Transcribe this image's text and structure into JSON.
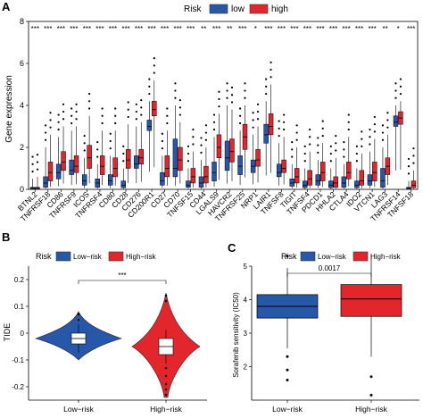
{
  "panels": {
    "A": {
      "label": "A"
    },
    "B": {
      "label": "B"
    },
    "C": {
      "label": "C"
    }
  },
  "colors": {
    "low": "#2757a8",
    "high": "#e3262b",
    "axis": "#000000",
    "grid": "#ffffff"
  },
  "chart_data": [
    {
      "type": "box",
      "panel": "A",
      "ylabel": "Gene expression",
      "ylim": [
        0,
        8
      ],
      "yticks": [
        0,
        2,
        4,
        6,
        8
      ],
      "legend": {
        "title": "Risk",
        "entries": [
          "low",
          "high"
        ],
        "position": "top"
      },
      "categories": [
        "BTNL2",
        "TNFRSF18",
        "CD86",
        "TNFRSF9",
        "ICOS",
        "TNFRSF4",
        "CD80",
        "CD28",
        "CD276",
        "CD200R1",
        "CD27",
        "CD70",
        "TNFSF15",
        "CD44",
        "LGALS9",
        "HAVCR2",
        "TNFRSF25",
        "NRP1",
        "LAIR1",
        "TNFSF8",
        "TIGIT",
        "TNFSF4",
        "PDCD1",
        "HHLA2",
        "CTLA4",
        "IDO2",
        "VTCN1",
        "LAG3",
        "TNFRSF14",
        "TNFSF18"
      ],
      "significance": [
        "***",
        "***",
        "***",
        "***",
        "***",
        "***",
        "***",
        "***",
        "***",
        "***",
        "***",
        "***",
        "***",
        "**",
        "***",
        "**",
        "***",
        "*",
        "***",
        "***",
        "***",
        "***",
        "***",
        "***",
        "***",
        "***",
        "***",
        "**",
        "*",
        "***"
      ],
      "series": [
        {
          "name": "low",
          "median": [
            0.05,
            0.3,
            0.8,
            0.9,
            0.4,
            0.3,
            0.4,
            0.2,
            1.2,
            3.0,
            0.4,
            1.0,
            0.2,
            0.3,
            0.8,
            1.5,
            1.1,
            1.1,
            2.6,
            0.8,
            0.3,
            0.2,
            0.4,
            0.2,
            0.3,
            0.2,
            0.4,
            0.4,
            3.2,
            0.05
          ],
          "q1": [
            0.02,
            0.1,
            0.5,
            0.7,
            0.2,
            0.1,
            0.2,
            0.08,
            1.0,
            2.8,
            0.2,
            0.6,
            0.1,
            0.1,
            0.4,
            0.9,
            0.7,
            0.8,
            2.2,
            0.6,
            0.15,
            0.08,
            0.2,
            0.08,
            0.1,
            0.08,
            0.2,
            0.1,
            3.0,
            0.02
          ],
          "q3": [
            0.1,
            0.6,
            1.2,
            1.4,
            0.7,
            0.5,
            0.7,
            0.4,
            1.6,
            3.3,
            0.8,
            2.4,
            0.4,
            0.6,
            1.3,
            2.3,
            1.6,
            1.4,
            3.1,
            1.2,
            0.5,
            0.4,
            0.7,
            0.4,
            0.6,
            0.4,
            0.7,
            1.0,
            3.5,
            0.1
          ],
          "max": [
            0.5,
            2.0,
            2.5,
            2.8,
            1.5,
            1.2,
            1.6,
            1.0,
            3.0,
            4.2,
            1.6,
            4.0,
            1.0,
            1.4,
            2.5,
            4.0,
            2.8,
            2.6,
            4.2,
            2.2,
            1.2,
            1.0,
            1.4,
            1.0,
            1.2,
            1.0,
            1.8,
            2.0,
            4.0,
            0.4
          ]
        },
        {
          "name": "high",
          "median": [
            0.05,
            0.8,
            1.3,
            1.1,
            1.5,
            1.1,
            1.0,
            1.4,
            1.5,
            3.8,
            1.0,
            1.4,
            0.6,
            0.6,
            2.0,
            1.8,
            2.5,
            1.4,
            3.0,
            1.0,
            0.6,
            0.5,
            0.8,
            0.3,
            0.8,
            0.4,
            0.8,
            1.1,
            3.4,
            0.2
          ],
          "q1": [
            0.02,
            0.4,
            0.9,
            0.8,
            1.0,
            0.7,
            0.6,
            1.0,
            1.2,
            3.5,
            0.6,
            0.9,
            0.3,
            0.3,
            1.5,
            1.3,
            1.9,
            1.1,
            2.6,
            0.8,
            0.3,
            0.2,
            0.4,
            0.1,
            0.5,
            0.2,
            0.4,
            0.7,
            3.1,
            0.08
          ],
          "q3": [
            0.1,
            1.3,
            1.8,
            1.6,
            2.1,
            1.6,
            1.5,
            1.9,
            1.9,
            4.2,
            1.6,
            2.0,
            1.0,
            1.1,
            2.6,
            2.4,
            3.1,
            1.9,
            3.6,
            1.4,
            1.0,
            0.9,
            1.3,
            0.6,
            1.3,
            0.9,
            1.3,
            1.5,
            3.7,
            0.4
          ],
          "max": [
            0.6,
            2.6,
            3.0,
            3.0,
            3.5,
            2.8,
            2.8,
            3.1,
            3.2,
            5.2,
            2.8,
            3.2,
            1.8,
            2.0,
            3.6,
            3.8,
            4.0,
            3.0,
            5.0,
            2.5,
            2.0,
            1.8,
            2.2,
            1.5,
            2.5,
            1.7,
            2.4,
            2.6,
            4.2,
            0.9
          ]
        }
      ]
    },
    {
      "type": "violin",
      "panel": "B",
      "ylabel": "TIDE",
      "ylim": [
        -0.25,
        0.25
      ],
      "yticks": [
        0.2,
        0.1,
        0.0,
        -0.1,
        -0.2
      ],
      "ytick_labels": [
        "0.2",
        "0.1",
        "0",
        "-0.1",
        "-0.2"
      ],
      "categories": [
        "Low−risk",
        "High−risk"
      ],
      "legend": {
        "title": "Risk",
        "entries": [
          "Low−risk",
          "High−risk"
        ],
        "position": "top"
      },
      "annotation": "***",
      "series": [
        {
          "name": "Low−risk",
          "median": -0.02,
          "q1": -0.04,
          "q3": 0.0,
          "min": -0.1,
          "max": 0.08
        },
        {
          "name": "High−risk",
          "median": -0.05,
          "q1": -0.08,
          "q3": -0.02,
          "min": -0.24,
          "max": 0.15
        }
      ]
    },
    {
      "type": "box",
      "panel": "C",
      "ylabel": "Sorafenib sensitivity (IC50)",
      "ylim": [
        1,
        5
      ],
      "yticks": [
        2,
        3,
        4,
        5
      ],
      "categories": [
        "Low−risk",
        "High−risk"
      ],
      "legend": {
        "title": "Risk",
        "entries": [
          "Low−risk",
          "High−risk"
        ],
        "position": "top"
      },
      "annotation": "0.0017",
      "series": [
        {
          "name": "Low−risk",
          "median": 3.8,
          "q1": 3.45,
          "q3": 4.15,
          "min": 2.55,
          "max": 4.95,
          "outliers": [
            5.3,
            2.3,
            1.9,
            1.6
          ]
        },
        {
          "name": "High−risk",
          "median": 4.02,
          "q1": 3.5,
          "q3": 4.45,
          "min": 2.3,
          "max": 5.3,
          "outliers": [
            1.7,
            1.15
          ]
        }
      ]
    }
  ]
}
